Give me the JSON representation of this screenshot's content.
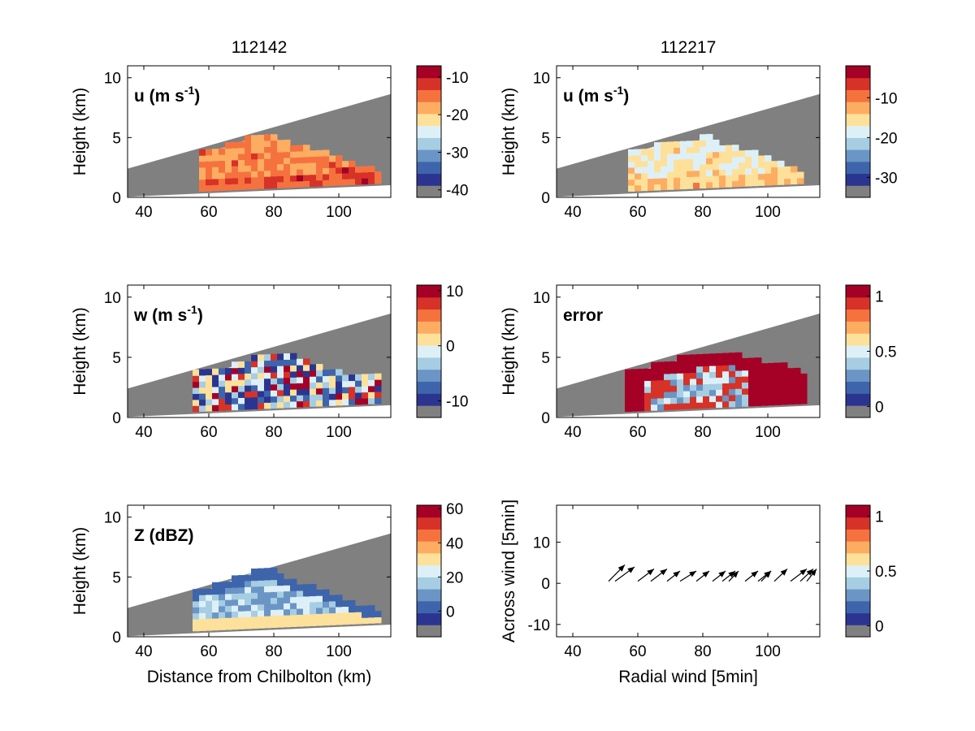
{
  "colors": {
    "background": "#ffffff",
    "beam_mask": "#808080",
    "colormap": [
      "#808080",
      "#2b3590",
      "#3e65ab",
      "#6a95c5",
      "#a6cde2",
      "#def0f7",
      "#fde19a",
      "#fdad62",
      "#f5723f",
      "#d73227",
      "#a50026"
    ]
  },
  "chart_data": [
    {
      "type": "heatmap",
      "title": "112142",
      "field": "u",
      "annotation": "u (m s",
      "annotation_sup": "-1",
      "annotation_end": ")",
      "xlabel": "",
      "ylabel": "Height (km)",
      "xlim": [
        35,
        116
      ],
      "ylim": [
        0,
        11
      ],
      "xticks": [
        40,
        60,
        80,
        100
      ],
      "yticks": [
        0,
        5,
        10
      ],
      "colorbar": {
        "ticks": [
          -10,
          -20,
          -30,
          -40
        ],
        "range": [
          -42,
          -7
        ]
      },
      "region": {
        "x": [
          57,
          112
        ],
        "top": [
          [
            57,
            3.7
          ],
          [
            62,
            4.0
          ],
          [
            68,
            4.4
          ],
          [
            72,
            4.9
          ],
          [
            78,
            5.3
          ],
          [
            80,
            4.6
          ],
          [
            86,
            4.3
          ],
          [
            94,
            3.6
          ],
          [
            100,
            3.0
          ],
          [
            106,
            2.4
          ],
          [
            110,
            2.1
          ],
          [
            112,
            1.8
          ]
        ],
        "levels": [
          [
            60,
            1
          ],
          [
            66,
            2
          ],
          [
            72,
            1
          ],
          [
            85,
            1
          ],
          [
            95,
            1
          ]
        ]
      }
    },
    {
      "type": "heatmap",
      "title": "112217",
      "field": "u",
      "annotation": "u (m s",
      "annotation_sup": "-1",
      "annotation_end": ")",
      "xlabel": "",
      "ylabel": "Height (km)",
      "xlim": [
        35,
        116
      ],
      "ylim": [
        0,
        11
      ],
      "xticks": [
        40,
        60,
        80,
        100
      ],
      "yticks": [
        0,
        5,
        10
      ],
      "colorbar": {
        "ticks": [
          -10,
          -20,
          -30
        ],
        "range": [
          -35,
          -2
        ]
      },
      "region": {
        "x": [
          57,
          111
        ],
        "top": [
          [
            57,
            3.8
          ],
          [
            62,
            4.0
          ],
          [
            68,
            4.5
          ],
          [
            72,
            4.6
          ],
          [
            76,
            4.2
          ],
          [
            80,
            5.0
          ],
          [
            84,
            4.3
          ],
          [
            90,
            3.9
          ],
          [
            96,
            3.5
          ],
          [
            100,
            2.9
          ],
          [
            106,
            2.3
          ],
          [
            111,
            2.0
          ]
        ],
        "levels": [
          [
            60,
            1
          ],
          [
            70,
            2
          ],
          [
            80,
            1
          ],
          [
            95,
            2
          ]
        ]
      }
    },
    {
      "type": "heatmap",
      "title": "",
      "field": "w",
      "annotation": "w (m s",
      "annotation_sup": "-1",
      "annotation_end": ")",
      "xlabel": "",
      "ylabel": "Height (km)",
      "xlim": [
        35,
        116
      ],
      "ylim": [
        0,
        11
      ],
      "xticks": [
        40,
        60,
        80,
        100
      ],
      "yticks": [
        0,
        5,
        10
      ],
      "colorbar": {
        "ticks": [
          10,
          0,
          -10
        ],
        "range": [
          -13,
          11
        ]
      },
      "region": {
        "x": [
          55,
          113
        ],
        "top": [
          [
            55,
            3.5
          ],
          [
            62,
            3.8
          ],
          [
            68,
            4.3
          ],
          [
            74,
            4.8
          ],
          [
            80,
            5.2
          ],
          [
            86,
            4.9
          ],
          [
            90,
            4.4
          ],
          [
            96,
            3.8
          ],
          [
            102,
            3.4
          ],
          [
            108,
            3.3
          ],
          [
            113,
            3.2
          ]
        ],
        "levels": [
          [
            58,
            1
          ],
          [
            66,
            2
          ],
          [
            75,
            1
          ],
          [
            88,
            1
          ],
          [
            100,
            2
          ]
        ]
      }
    },
    {
      "type": "heatmap",
      "title": "",
      "field": "error",
      "annotation": "error",
      "annotation_sup": "",
      "annotation_end": "",
      "xlabel": "",
      "ylabel": "Height (km)",
      "xlim": [
        35,
        116
      ],
      "ylim": [
        0,
        11
      ],
      "xticks": [
        40,
        60,
        80,
        100
      ],
      "yticks": [
        0,
        5,
        10
      ],
      "colorbar": {
        "ticks": [
          1,
          0.5,
          0
        ],
        "range": [
          -0.1,
          1.1
        ]
      },
      "region": {
        "x": [
          56,
          112
        ],
        "top": [
          [
            56,
            3.6
          ],
          [
            62,
            4.0
          ],
          [
            70,
            4.6
          ],
          [
            78,
            5.0
          ],
          [
            84,
            5.3
          ],
          [
            90,
            5.0
          ],
          [
            96,
            4.6
          ],
          [
            104,
            4.1
          ],
          [
            112,
            3.4
          ]
        ],
        "levels": [
          [
            60,
            1
          ],
          [
            70,
            2
          ],
          [
            85,
            1
          ],
          [
            100,
            2
          ]
        ]
      }
    },
    {
      "type": "heatmap",
      "title": "",
      "field": "Z",
      "annotation": "Z (dBZ)",
      "annotation_sup": "",
      "annotation_end": "",
      "xlabel": "Distance from Chilbolton (km)",
      "ylabel": "Height (km)",
      "xlim": [
        35,
        116
      ],
      "ylim": [
        0,
        11
      ],
      "xticks": [
        40,
        60,
        80,
        100
      ],
      "yticks": [
        0,
        5,
        10
      ],
      "colorbar": {
        "ticks": [
          60,
          40,
          20,
          0
        ],
        "range": [
          -15,
          62
        ]
      },
      "region": {
        "x": [
          55,
          112
        ],
        "top": [
          [
            55,
            3.7
          ],
          [
            60,
            4.0
          ],
          [
            66,
            4.6
          ],
          [
            72,
            5.2
          ],
          [
            78,
            5.6
          ],
          [
            82,
            4.8
          ],
          [
            88,
            4.2
          ],
          [
            94,
            3.8
          ],
          [
            100,
            3.0
          ],
          [
            106,
            2.4
          ],
          [
            112,
            2.1
          ]
        ],
        "levels": [
          [
            58,
            1
          ],
          [
            68,
            2
          ],
          [
            80,
            1
          ],
          [
            92,
            2
          ]
        ]
      }
    },
    {
      "type": "scatter",
      "title": "",
      "xlabel": "Radial wind [5min]",
      "ylabel": "Across wind [5min]",
      "xlim": [
        35,
        116
      ],
      "ylim": [
        -13,
        19
      ],
      "xticks": [
        40,
        60,
        80,
        100
      ],
      "yticks": [
        10,
        0,
        -10
      ],
      "colorbar": {
        "ticks": [
          1,
          0.5,
          0
        ],
        "range": [
          -0.1,
          1.1
        ]
      },
      "arrows": [
        {
          "x": 51,
          "y": 0.5,
          "dx": 5,
          "dy": 4.0
        },
        {
          "x": 53,
          "y": 0.5,
          "dx": 6,
          "dy": 3.5
        },
        {
          "x": 60,
          "y": 0.5,
          "dx": 5,
          "dy": 3.0
        },
        {
          "x": 64,
          "y": 0.5,
          "dx": 5,
          "dy": 3.0
        },
        {
          "x": 69,
          "y": 0.5,
          "dx": 4,
          "dy": 2.5
        },
        {
          "x": 73,
          "y": 0.5,
          "dx": 5,
          "dy": 2.5
        },
        {
          "x": 78,
          "y": 0.5,
          "dx": 4,
          "dy": 2.5
        },
        {
          "x": 83,
          "y": 0.5,
          "dx": 4,
          "dy": 2.5
        },
        {
          "x": 86,
          "y": 0.5,
          "dx": 4,
          "dy": 2.5
        },
        {
          "x": 88,
          "y": 0.5,
          "dx": 3,
          "dy": 2.5
        },
        {
          "x": 93,
          "y": 0.5,
          "dx": 4,
          "dy": 2.5
        },
        {
          "x": 97,
          "y": 0.5,
          "dx": 4,
          "dy": 2.5
        },
        {
          "x": 98,
          "y": 0.5,
          "dx": 3,
          "dy": 2.5
        },
        {
          "x": 102,
          "y": 0.5,
          "dx": 4,
          "dy": 3.0
        },
        {
          "x": 107,
          "y": 0.5,
          "dx": 5,
          "dy": 3.0
        },
        {
          "x": 110,
          "y": 0.5,
          "dx": 4,
          "dy": 3.0
        },
        {
          "x": 112,
          "y": 0.5,
          "dx": 3,
          "dy": 3.0
        }
      ]
    }
  ]
}
